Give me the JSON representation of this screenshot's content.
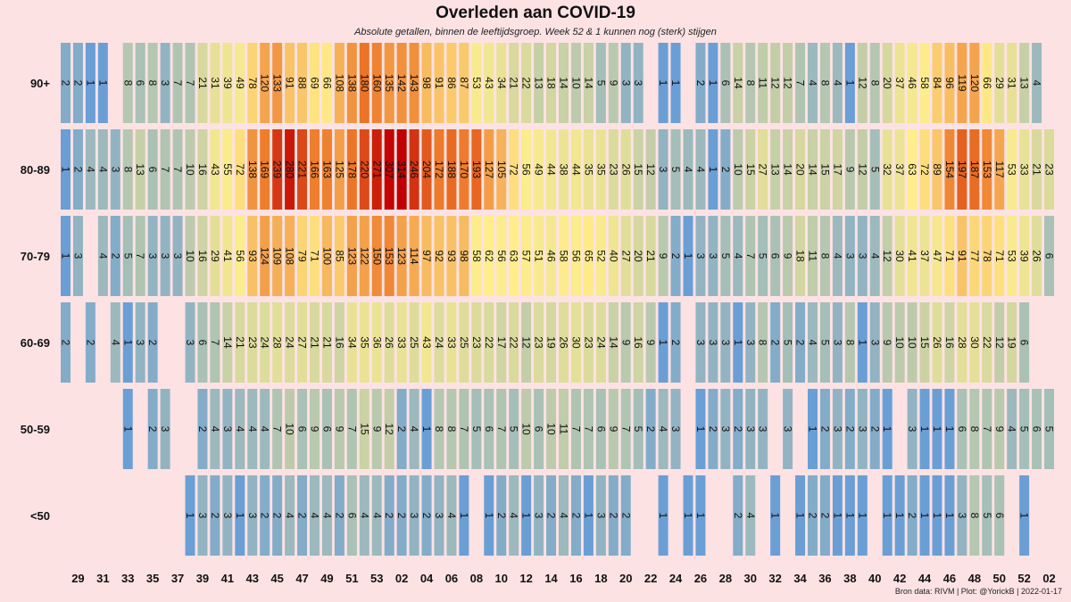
{
  "title": "Overleden aan COVID-19",
  "subtitle": "Absolute getallen, binnen de leeftijdsgroep. Week 52 & 1 kunnen nog (sterk) stijgen",
  "credit": "Bron data: RIVM | Plot: @YorickB |  2022-01-17",
  "chart_data": {
    "type": "heatmap",
    "title": "Overleden aan COVID-19",
    "subtitle": "Absolute getallen, binnen de leeftijdsgroep. Week 52 & 1 kunnen nog (sterk) stijgen",
    "weeks": [
      "28",
      "29",
      "30",
      "31",
      "32",
      "33",
      "34",
      "35",
      "36",
      "37",
      "38",
      "39",
      "40",
      "41",
      "42",
      "43",
      "44",
      "45",
      "46",
      "47",
      "48",
      "49",
      "50",
      "51",
      "52",
      "53",
      "01",
      "02",
      "03",
      "04",
      "05",
      "06",
      "07",
      "08",
      "09",
      "10",
      "11",
      "12",
      "13",
      "14",
      "15",
      "16",
      "17",
      "18",
      "19",
      "20",
      "21",
      "22",
      "23",
      "24",
      "25",
      "26",
      "27",
      "28",
      "29",
      "30",
      "31",
      "32",
      "33",
      "34",
      "35",
      "36",
      "37",
      "38",
      "39",
      "40",
      "41",
      "42",
      "43",
      "44",
      "45",
      "46",
      "47",
      "48",
      "49",
      "50",
      "51",
      "52",
      "01",
      "02"
    ],
    "x_tick_labels": [
      "29",
      "31",
      "33",
      "35",
      "37",
      "39",
      "41",
      "43",
      "45",
      "47",
      "49",
      "51",
      "53",
      "02",
      "04",
      "06",
      "08",
      "10",
      "12",
      "14",
      "16",
      "18",
      "20",
      "22",
      "24",
      "26",
      "28",
      "30",
      "32",
      "34",
      "36",
      "38",
      "40",
      "42",
      "44",
      "46",
      "48",
      "50",
      "52",
      "02"
    ],
    "color_scale": {
      "low": "#6a9fd6",
      "mid": "#ffee8a",
      "high": "#c00000"
    },
    "rows": [
      {
        "label": "90+",
        "values": [
          2,
          2,
          1,
          1,
          null,
          8,
          6,
          8,
          3,
          7,
          7,
          21,
          31,
          39,
          49,
          78,
          120,
          133,
          91,
          88,
          69,
          66,
          108,
          138,
          180,
          160,
          135,
          142,
          143,
          98,
          91,
          86,
          87,
          53,
          43,
          34,
          21,
          22,
          13,
          18,
          14,
          10,
          14,
          5,
          9,
          3,
          3,
          null,
          1,
          1,
          null,
          2,
          1,
          6,
          14,
          8,
          11,
          12,
          12,
          7,
          4,
          8,
          4,
          1,
          12,
          8,
          20,
          37,
          46,
          58,
          84,
          96,
          119,
          120,
          66,
          29,
          31,
          13,
          4,
          null
        ]
      },
      {
        "label": "80-89",
        "values": [
          1,
          2,
          4,
          4,
          3,
          8,
          13,
          6,
          7,
          7,
          10,
          16,
          43,
          55,
          72,
          138,
          169,
          239,
          280,
          221,
          166,
          163,
          125,
          178,
          220,
          271,
          307,
          314,
          246,
          204,
          172,
          188,
          170,
          193,
          127,
          105,
          72,
          56,
          49,
          44,
          38,
          44,
          35,
          35,
          23,
          26,
          15,
          12,
          3,
          5,
          4,
          4,
          1,
          2,
          10,
          15,
          27,
          13,
          14,
          20,
          14,
          15,
          17,
          9,
          12,
          5,
          32,
          37,
          63,
          72,
          89,
          154,
          197,
          187,
          153,
          117,
          53,
          33,
          21,
          23
        ]
      },
      {
        "label": "70-79",
        "values": [
          1,
          3,
          null,
          4,
          2,
          5,
          7,
          3,
          3,
          3,
          10,
          16,
          29,
          41,
          56,
          93,
          124,
          109,
          108,
          79,
          71,
          100,
          85,
          123,
          122,
          150,
          153,
          123,
          114,
          97,
          92,
          93,
          98,
          58,
          62,
          56,
          63,
          57,
          51,
          46,
          58,
          56,
          65,
          52,
          40,
          27,
          20,
          21,
          9,
          2,
          1,
          3,
          3,
          5,
          4,
          7,
          5,
          6,
          9,
          18,
          11,
          8,
          4,
          3,
          3,
          4,
          12,
          30,
          41,
          37,
          47,
          71,
          91,
          77,
          78,
          71,
          53,
          39,
          26,
          6
        ]
      },
      {
        "label": "60-69",
        "values": [
          2,
          null,
          2,
          null,
          4,
          1,
          3,
          2,
          null,
          null,
          3,
          6,
          7,
          14,
          21,
          23,
          24,
          28,
          24,
          27,
          21,
          21,
          16,
          34,
          35,
          36,
          26,
          33,
          25,
          43,
          24,
          33,
          25,
          23,
          22,
          17,
          22,
          12,
          23,
          19,
          26,
          30,
          23,
          24,
          14,
          9,
          16,
          9,
          1,
          2,
          null,
          3,
          3,
          3,
          1,
          3,
          8,
          2,
          5,
          2,
          4,
          5,
          3,
          8,
          1,
          3,
          9,
          10,
          10,
          15,
          26,
          16,
          28,
          30,
          22,
          12,
          19,
          6,
          null,
          null
        ]
      },
      {
        "label": "50-59",
        "values": [
          null,
          null,
          null,
          null,
          null,
          1,
          null,
          2,
          3,
          null,
          null,
          2,
          4,
          3,
          4,
          4,
          4,
          7,
          10,
          6,
          9,
          6,
          9,
          7,
          15,
          9,
          12,
          2,
          4,
          1,
          8,
          8,
          7,
          5,
          6,
          7,
          5,
          10,
          6,
          10,
          11,
          7,
          7,
          6,
          9,
          7,
          5,
          2,
          4,
          3,
          null,
          1,
          2,
          3,
          2,
          3,
          3,
          null,
          3,
          null,
          1,
          2,
          3,
          2,
          3,
          2,
          1,
          null,
          3,
          1,
          1,
          1,
          6,
          8,
          7,
          9,
          4,
          5,
          6,
          5
        ]
      },
      {
        "label": "<50",
        "values": [
          null,
          null,
          null,
          null,
          null,
          null,
          null,
          null,
          null,
          null,
          1,
          3,
          2,
          3,
          1,
          3,
          2,
          2,
          4,
          2,
          4,
          4,
          2,
          6,
          4,
          4,
          2,
          2,
          3,
          2,
          3,
          4,
          1,
          null,
          1,
          2,
          4,
          1,
          3,
          2,
          4,
          2,
          1,
          3,
          2,
          2,
          null,
          null,
          1,
          null,
          1,
          1,
          null,
          null,
          2,
          4,
          null,
          1,
          null,
          1,
          2,
          2,
          1,
          1,
          1,
          null,
          1,
          1,
          2,
          1,
          1,
          1,
          3,
          8,
          5,
          6,
          null,
          1,
          null,
          null
        ]
      }
    ]
  }
}
